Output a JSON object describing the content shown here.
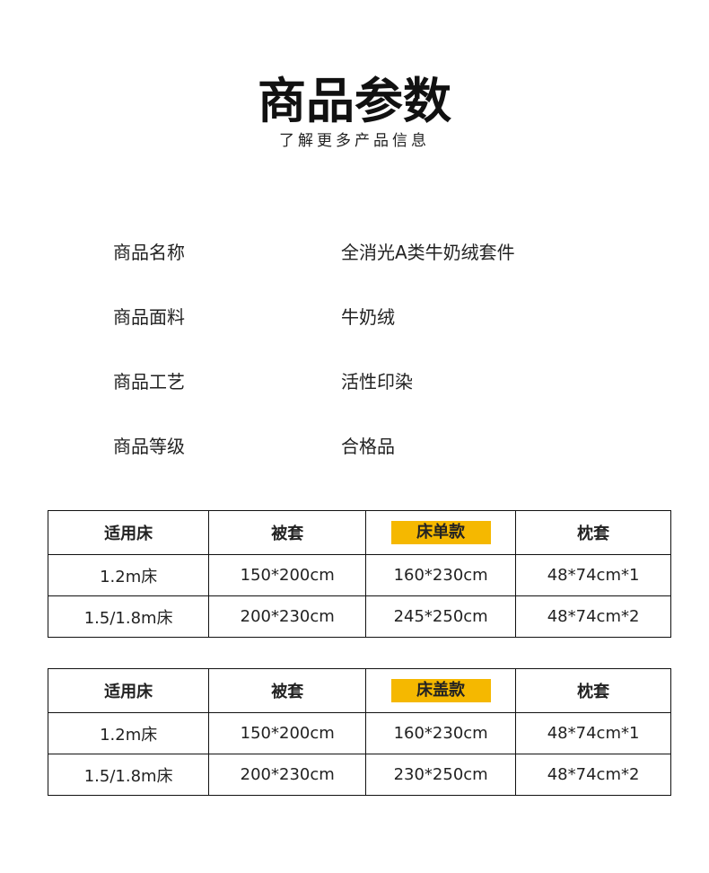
{
  "header": {
    "title": "商品参数",
    "subtitle": "了解更多产品信息"
  },
  "params": [
    {
      "label": "商品名称",
      "value": "全消光A类牛奶绒套件"
    },
    {
      "label": "商品面料",
      "value": "牛奶绒"
    },
    {
      "label": "商品工艺",
      "value": "活性印染"
    },
    {
      "label": "商品等级",
      "value": "合格品"
    }
  ],
  "highlight_color": "#f5b800",
  "tables": [
    {
      "headers": [
        "适用床",
        "被套",
        "床单款",
        "枕套"
      ],
      "rows": [
        [
          "1.2m床",
          "150*200cm",
          "160*230cm",
          "48*74cm*1"
        ],
        [
          "1.5/1.8m床",
          "200*230cm",
          "245*250cm",
          "48*74cm*2"
        ]
      ]
    },
    {
      "headers": [
        "适用床",
        "被套",
        "床盖款",
        "枕套"
      ],
      "rows": [
        [
          "1.2m床",
          "150*200cm",
          "160*230cm",
          "48*74cm*1"
        ],
        [
          "1.5/1.8m床",
          "200*230cm",
          "230*250cm",
          "48*74cm*2"
        ]
      ]
    }
  ]
}
